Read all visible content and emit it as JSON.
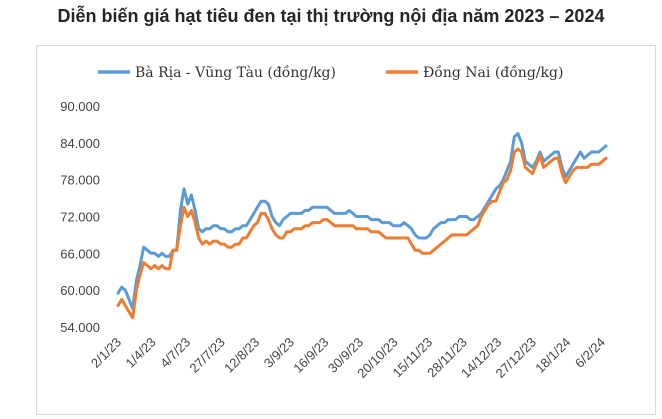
{
  "title": "Diễn biến giá hạt tiêu đen tại thị trường nội địa năm 2023 – 2024",
  "chart_data": {
    "type": "line",
    "title": "Diễn biến giá hạt tiêu đen tại thị trường nội địa năm 2023 – 2024",
    "xlabel": "",
    "ylabel": "",
    "ylim": [
      54000,
      90000
    ],
    "yticks": [
      "54.000",
      "60.000",
      "66.000",
      "72.000",
      "78.000",
      "84.000",
      "90.000"
    ],
    "x_tick_labels": [
      "2/1/23",
      "1/4/23",
      "4/7/23",
      "27/7/23",
      "12/8/23",
      "3/9/23",
      "16/9/23",
      "30/9/23",
      "20/10/23",
      "15/11/23",
      "28/11/23",
      "14/12/23",
      "27/12/23",
      "18/1/24",
      "6/2/24"
    ],
    "grid": false,
    "legend_position": "top",
    "series": [
      {
        "name": "Bà Rịa - Vũng Tàu (đồng/kg)",
        "color": "#5b9bd5",
        "values": [
          59500,
          60500,
          60000,
          58500,
          57000,
          61500,
          64000,
          67000,
          66500,
          66000,
          66000,
          65500,
          66000,
          65500,
          65500,
          66500,
          66500,
          73000,
          76500,
          74000,
          75500,
          73000,
          70000,
          69500,
          70000,
          70000,
          70500,
          70500,
          70000,
          70000,
          69500,
          69500,
          70000,
          70000,
          70500,
          70500,
          71500,
          72500,
          73500,
          74500,
          74500,
          74000,
          72000,
          71000,
          70500,
          71500,
          72000,
          72500,
          72500,
          72500,
          72500,
          73000,
          73000,
          73500,
          73500,
          73500,
          73500,
          73500,
          73000,
          72500,
          72500,
          72500,
          72500,
          73000,
          72500,
          72000,
          72000,
          72000,
          72000,
          71500,
          71500,
          71500,
          71000,
          71000,
          71000,
          70500,
          70500,
          70500,
          71000,
          70500,
          70000,
          69000,
          68500,
          68500,
          68500,
          69000,
          70000,
          70500,
          71000,
          71000,
          71500,
          71500,
          71500,
          72000,
          72000,
          72000,
          71500,
          71500,
          72000,
          72500,
          73500,
          74500,
          75500,
          76500,
          77000,
          78000,
          79500,
          81000,
          85000,
          85500,
          84000,
          81000,
          80500,
          80000,
          81000,
          82500,
          81000,
          81500,
          82000,
          82500,
          82500,
          80000,
          78500,
          79500,
          80500,
          81500,
          82500,
          81500,
          82000,
          82500,
          82500,
          82500,
          83000,
          83500
        ]
      },
      {
        "name": "Đồng Nai (đồng/kg)",
        "color": "#ed7d31",
        "values": [
          57500,
          58500,
          57500,
          56500,
          55500,
          60000,
          62500,
          64500,
          64000,
          63500,
          64000,
          63500,
          64000,
          63500,
          63500,
          66500,
          66500,
          70500,
          73500,
          72000,
          73000,
          71000,
          68500,
          67500,
          68000,
          67500,
          68000,
          68000,
          67500,
          67500,
          67000,
          67000,
          67500,
          67500,
          68500,
          68500,
          69500,
          70500,
          71000,
          72500,
          72500,
          71500,
          70000,
          69000,
          68500,
          68500,
          69500,
          69500,
          70000,
          70000,
          70000,
          70500,
          70500,
          71000,
          71000,
          71000,
          71500,
          71500,
          71000,
          70500,
          70500,
          70500,
          70500,
          70500,
          70500,
          70000,
          70000,
          70000,
          70000,
          69500,
          69500,
          69500,
          69000,
          68500,
          68500,
          68500,
          68500,
          68500,
          68500,
          68500,
          67500,
          66500,
          66500,
          66000,
          66000,
          66000,
          66500,
          67000,
          67500,
          68000,
          68500,
          69000,
          69000,
          69000,
          69000,
          69000,
          69500,
          70000,
          70500,
          72000,
          73000,
          74000,
          74500,
          74500,
          76000,
          77500,
          78000,
          79500,
          82500,
          83000,
          82500,
          80000,
          79500,
          79000,
          80500,
          82000,
          80000,
          80500,
          81000,
          81500,
          81500,
          79000,
          77500,
          78500,
          79500,
          80000,
          80000,
          80000,
          80000,
          80500,
          80500,
          80500,
          81000,
          81500
        ]
      }
    ]
  }
}
